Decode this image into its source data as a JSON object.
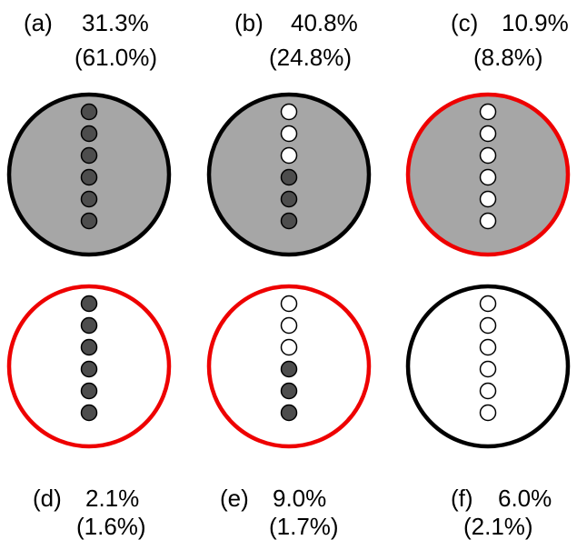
{
  "colors": {
    "outline_black": "#000000",
    "outline_red": "#ee0000",
    "fill_gray": "#a6a6a6",
    "fill_white": "#ffffff",
    "dot_dark": "#4d4d4d",
    "dot_light": "#ffffff"
  },
  "panels": [
    {
      "letter": "(a)",
      "percent": "31.3%",
      "sub": "(61.0%)",
      "outline": "black",
      "fill": "gray",
      "dots": [
        "dark",
        "dark",
        "dark",
        "dark",
        "dark",
        "dark"
      ]
    },
    {
      "letter": "(b)",
      "percent": "40.8%",
      "sub": "(24.8%)",
      "outline": "black",
      "fill": "gray",
      "dots": [
        "light",
        "light",
        "light",
        "dark",
        "dark",
        "dark"
      ]
    },
    {
      "letter": "(c)",
      "percent": "10.9%",
      "sub": "(8.8%)",
      "outline": "red",
      "fill": "gray",
      "dots": [
        "light",
        "light",
        "light",
        "light",
        "light",
        "light"
      ]
    },
    {
      "letter": "(d)",
      "percent": "2.1%",
      "sub": "(1.6%)",
      "outline": "red",
      "fill": "white",
      "dots": [
        "dark",
        "dark",
        "dark",
        "dark",
        "dark",
        "dark"
      ]
    },
    {
      "letter": "(e)",
      "percent": "9.0%",
      "sub": "(1.7%)",
      "outline": "red",
      "fill": "white",
      "dots": [
        "light",
        "light",
        "light",
        "dark",
        "dark",
        "dark"
      ]
    },
    {
      "letter": "(f)",
      "percent": "6.0%",
      "sub": "(2.1%)",
      "outline": "black",
      "fill": "white",
      "dots": [
        "light",
        "light",
        "light",
        "light",
        "light",
        "light"
      ]
    }
  ]
}
